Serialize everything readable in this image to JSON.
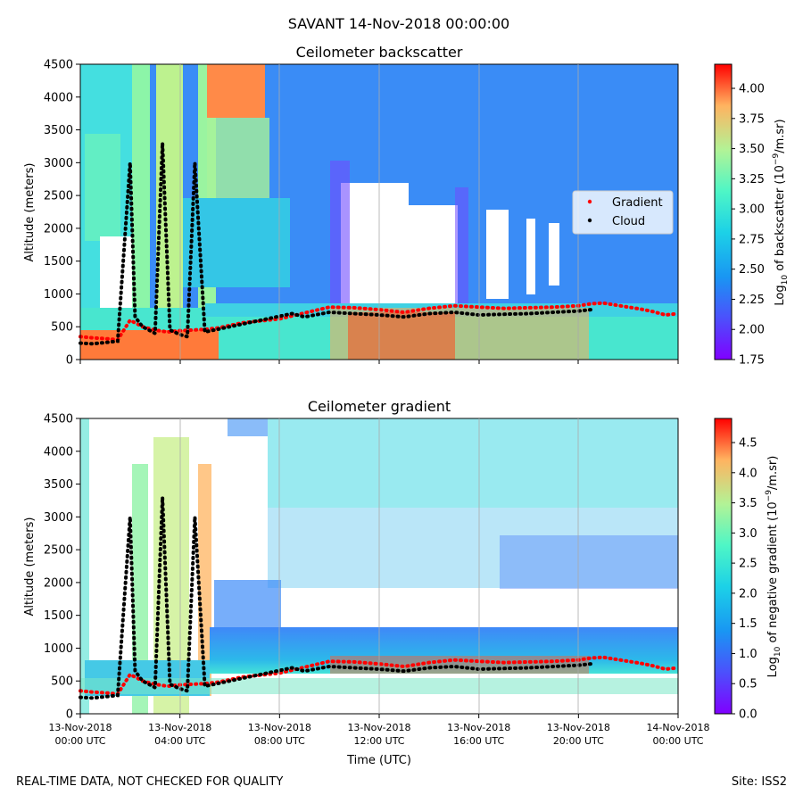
{
  "suptitle": "SAVANT 14-Nov-2018 00:00:00",
  "footer": {
    "left": "REAL-TIME DATA, NOT CHECKED FOR QUALITY",
    "right": "Site: ISS2"
  },
  "chart_data": [
    {
      "type": "heatmap",
      "title": "Ceilometer backscatter",
      "ylabel": "Altitude (meters)",
      "xlabel": "",
      "ylim": [
        0,
        4500
      ],
      "yticks": [
        0,
        500,
        1000,
        1500,
        2000,
        2500,
        3000,
        3500,
        4000,
        4500
      ],
      "xlim_hours": [
        0,
        24
      ],
      "colorbar": {
        "label_main": "Log",
        "label_sub": "10",
        "label_rest": " of backscatter (10",
        "label_sup": "−9",
        "label_end": "/m.sr)",
        "range": [
          1.75,
          4.2
        ],
        "ticks": [
          "1.75",
          "2.00",
          "2.25",
          "2.50",
          "2.75",
          "3.00",
          "3.25",
          "3.50",
          "3.75",
          "4.00"
        ],
        "colormap": "rainbow"
      },
      "legend": {
        "position": "center-right",
        "entries": [
          {
            "name": "Gradient",
            "color": "#ff0000"
          },
          {
            "name": "Cloud",
            "color": "#000000"
          }
        ]
      },
      "series": [
        {
          "name": "Gradient",
          "x_hours": [
            0.0,
            0.5,
            1.0,
            1.5,
            2.0,
            2.5,
            3.0,
            3.5,
            4.0,
            4.5,
            5.0,
            5.5,
            6.0,
            6.5,
            7.0,
            7.5,
            8.0,
            10.0,
            11.0,
            12.0,
            13.0,
            14.0,
            15.0,
            16.0,
            17.0,
            18.0,
            19.0,
            20.0,
            20.5,
            21.0,
            21.5,
            22.0,
            22.5,
            23.0,
            23.5,
            24.0
          ],
          "y_m": [
            350,
            330,
            320,
            300,
            600,
            500,
            450,
            420,
            440,
            450,
            460,
            480,
            520,
            560,
            580,
            600,
            620,
            800,
            790,
            760,
            720,
            780,
            820,
            800,
            780,
            790,
            800,
            820,
            850,
            860,
            830,
            800,
            770,
            730,
            680,
            700
          ]
        },
        {
          "name": "Cloud",
          "x_hours": [
            0.0,
            0.5,
            1.0,
            1.5,
            2.0,
            2.2,
            2.5,
            3.0,
            3.3,
            3.6,
            4.0,
            4.3,
            4.6,
            5.0,
            8.5,
            9.0,
            10.0,
            11.0,
            12.0,
            13.0,
            14.0,
            15.0,
            16.0,
            17.0,
            18.0,
            19.0,
            20.0,
            20.5
          ],
          "y_m": [
            250,
            240,
            260,
            280,
            3000,
            650,
            500,
            400,
            3300,
            450,
            380,
            350,
            3000,
            420,
            700,
            650,
            720,
            700,
            680,
            650,
            700,
            720,
            680,
            690,
            700,
            720,
            740,
            760
          ]
        }
      ]
    },
    {
      "type": "heatmap",
      "title": "Ceilometer gradient",
      "ylabel": "Altitude (meters)",
      "xlabel": "Time (UTC)",
      "ylim": [
        0,
        4500
      ],
      "yticks": [
        0,
        500,
        1000,
        1500,
        2000,
        2500,
        3000,
        3500,
        4000,
        4500
      ],
      "xlim_hours": [
        0,
        24
      ],
      "xticks": [
        {
          "hours": 0,
          "line1": "13-Nov-2018",
          "line2": "00:00 UTC"
        },
        {
          "hours": 4,
          "line1": "13-Nov-2018",
          "line2": "04:00 UTC"
        },
        {
          "hours": 8,
          "line1": "13-Nov-2018",
          "line2": "08:00 UTC"
        },
        {
          "hours": 12,
          "line1": "13-Nov-2018",
          "line2": "12:00 UTC"
        },
        {
          "hours": 16,
          "line1": "13-Nov-2018",
          "line2": "16:00 UTC"
        },
        {
          "hours": 20,
          "line1": "13-Nov-2018",
          "line2": "20:00 UTC"
        },
        {
          "hours": 24,
          "line1": "14-Nov-2018",
          "line2": "00:00 UTC"
        }
      ],
      "colorbar": {
        "label_main": "Log",
        "label_sub": "10",
        "label_rest": " of negative gradient (10",
        "label_sup": "−9",
        "label_end": "/m.sr)",
        "range": [
          0.0,
          4.9
        ],
        "ticks": [
          "0.0",
          "0.5",
          "1.0",
          "1.5",
          "2.0",
          "2.5",
          "3.0",
          "3.5",
          "4.0",
          "4.5"
        ],
        "colormap": "rainbow"
      }
    }
  ]
}
